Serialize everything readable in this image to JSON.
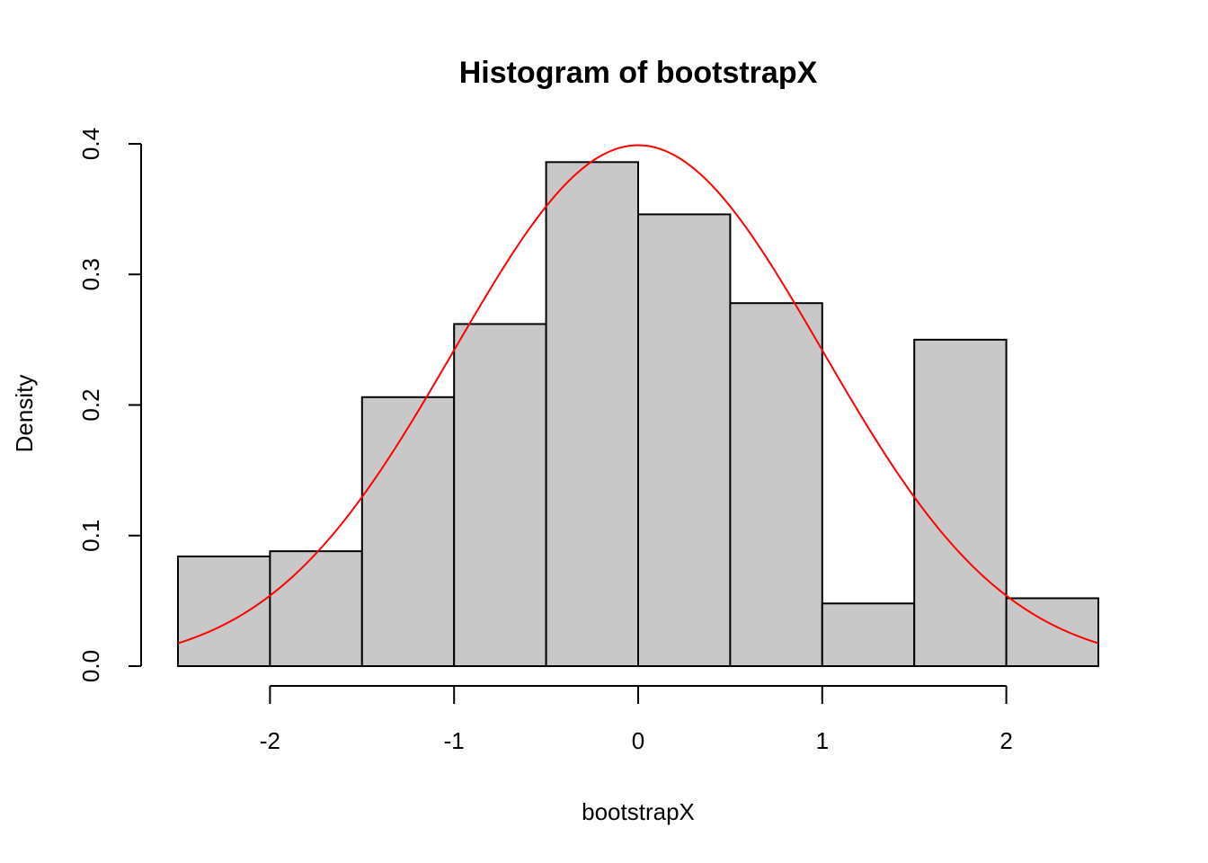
{
  "chart_data": {
    "type": "bar",
    "title": "Histogram of bootstrapX",
    "xlabel": "bootstrapX",
    "ylabel": "Density",
    "bins": [
      {
        "start": -2.5,
        "end": -2.0,
        "density": 0.084
      },
      {
        "start": -2.0,
        "end": -1.5,
        "density": 0.088
      },
      {
        "start": -1.5,
        "end": -1.0,
        "density": 0.206
      },
      {
        "start": -1.0,
        "end": -0.5,
        "density": 0.262
      },
      {
        "start": -0.5,
        "end": 0.0,
        "density": 0.386
      },
      {
        "start": 0.0,
        "end": 0.5,
        "density": 0.346
      },
      {
        "start": 0.5,
        "end": 1.0,
        "density": 0.278
      },
      {
        "start": 1.0,
        "end": 1.5,
        "density": 0.048
      },
      {
        "start": 1.5,
        "end": 2.0,
        "density": 0.25
      },
      {
        "start": 2.0,
        "end": 2.5,
        "density": 0.052
      }
    ],
    "overlay": {
      "type": "normal-density",
      "mean": 0,
      "sd": 1,
      "color": "#ff0000"
    },
    "bar_color": "#c8c8c8",
    "xlim": [
      -2.5,
      2.5
    ],
    "ylim": [
      0,
      0.4
    ],
    "xticks": [
      -2,
      -1,
      0,
      1,
      2
    ],
    "xtick_labels": [
      "-2",
      "-1",
      "0",
      "1",
      "2"
    ],
    "yticks": [
      0,
      0.1,
      0.2,
      0.3,
      0.4
    ],
    "ytick_labels": [
      "0.0",
      "0.1",
      "0.2",
      "0.3",
      "0.4"
    ],
    "grid": false,
    "legend": "none"
  }
}
